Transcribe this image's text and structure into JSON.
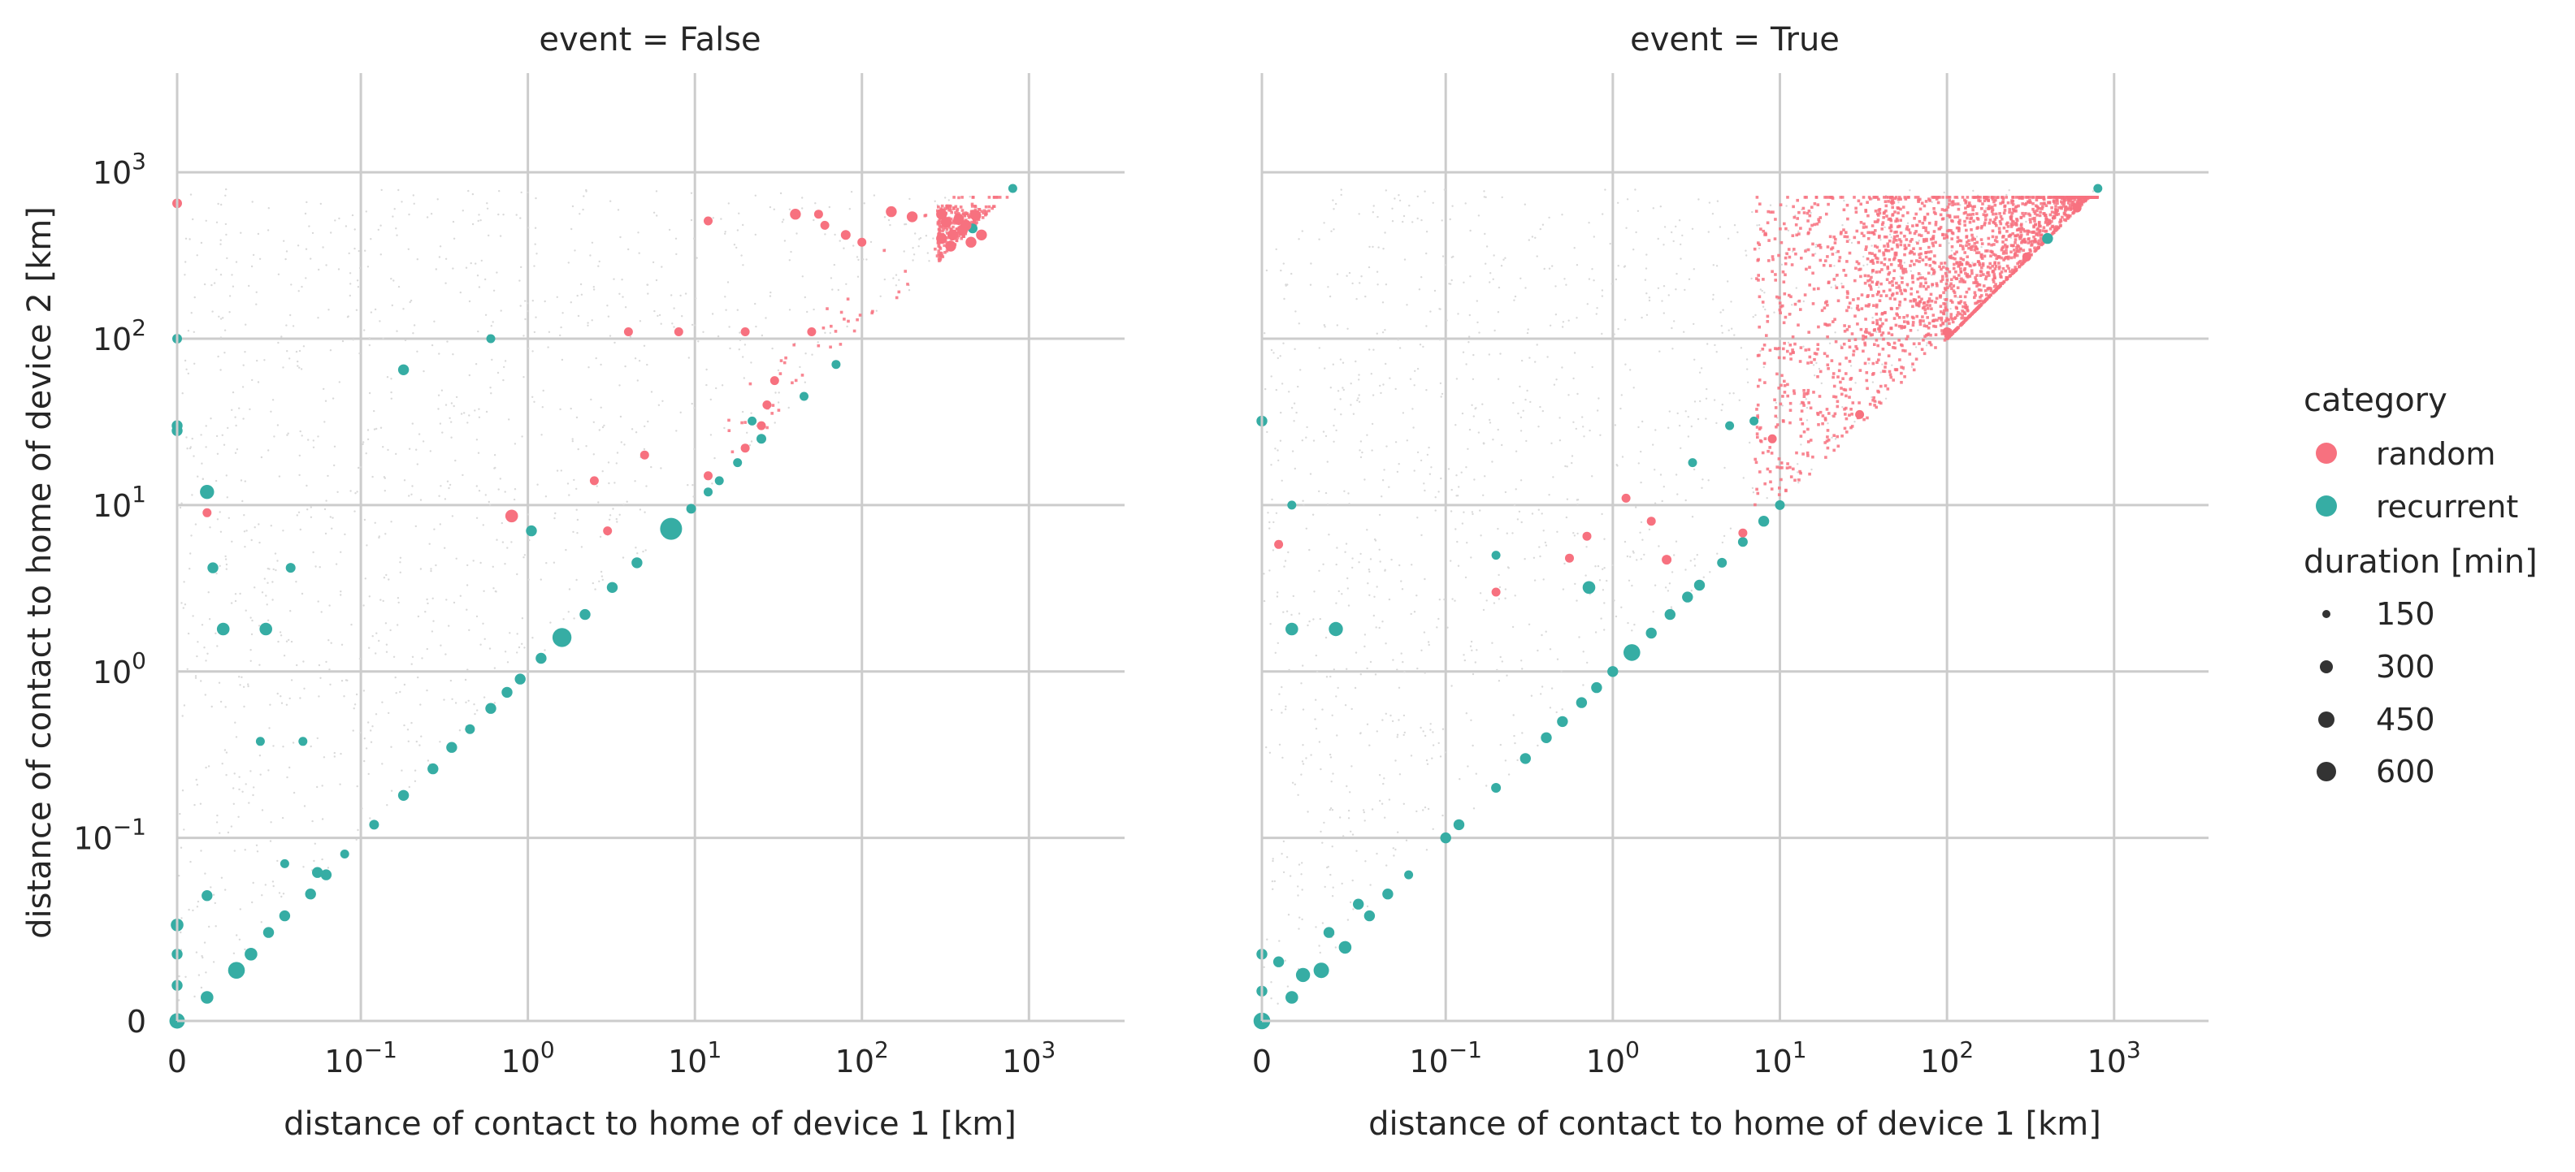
{
  "chart_data": [
    {
      "type": "scatter",
      "title": "event = False",
      "xlabel": "distance of contact to home of device 1 [km]",
      "ylabel": "distance of contact to home of device 2 [km]",
      "xscale": "symlog",
      "yscale": "symlog",
      "xlim": [
        0,
        2000
      ],
      "ylim": [
        0,
        2000
      ],
      "xticks": [
        {
          "value": 0,
          "base": "0",
          "exp": ""
        },
        {
          "value": 0.1,
          "base": "10",
          "exp": "−1"
        },
        {
          "value": 1,
          "base": "10",
          "exp": "0"
        },
        {
          "value": 10,
          "base": "10",
          "exp": "1"
        },
        {
          "value": 100,
          "base": "10",
          "exp": "2"
        },
        {
          "value": 1000,
          "base": "10",
          "exp": "3"
        }
      ],
      "yticks": [
        {
          "value": 0,
          "base": "0",
          "exp": ""
        },
        {
          "value": 0.1,
          "base": "10",
          "exp": "−1"
        },
        {
          "value": 1,
          "base": "10",
          "exp": "0"
        },
        {
          "value": 10,
          "base": "10",
          "exp": "1"
        },
        {
          "value": 100,
          "base": "10",
          "exp": "2"
        },
        {
          "value": 1000,
          "base": "10",
          "exp": "3"
        }
      ],
      "grid": true,
      "series": [
        {
          "name": "recurrent",
          "points": [
            [
              0.002,
              0.002,
              200
            ],
            [
              0.005,
              0.004,
              300
            ],
            [
              0.008,
              0.008,
              250
            ],
            [
              0.012,
              0.011,
              200
            ],
            [
              0.018,
              0.016,
              350
            ],
            [
              0.022,
              0.02,
              200
            ],
            [
              0.028,
              0.027,
              150
            ],
            [
              0.035,
              0.034,
              150
            ],
            [
              0.05,
              0.046,
              150
            ],
            [
              0.062,
              0.06,
              150
            ],
            [
              0.08,
              0.08,
              100
            ],
            [
              0.12,
              0.12,
              120
            ],
            [
              0.18,
              0.18,
              150
            ],
            [
              0.27,
              0.26,
              150
            ],
            [
              0.35,
              0.35,
              150
            ],
            [
              0.45,
              0.45,
              120
            ],
            [
              0.6,
              0.6,
              150
            ],
            [
              0.75,
              0.75,
              150
            ],
            [
              0.9,
              0.9,
              150
            ],
            [
              1.2,
              1.2,
              150
            ],
            [
              1.6,
              1.6,
              450
            ],
            [
              2.2,
              2.2,
              150
            ],
            [
              3.2,
              3.2,
              150
            ],
            [
              4.5,
              4.5,
              150
            ],
            [
              7.2,
              7.2,
              600
            ],
            [
              9.5,
              9.5,
              120
            ],
            [
              12,
              12,
              100
            ],
            [
              18,
              18,
              100
            ],
            [
              25,
              25,
              120
            ],
            [
              45,
              45,
              100
            ],
            [
              70,
              70,
              100
            ],
            [
              460,
              460,
              120
            ],
            [
              800,
              800,
              100
            ],
            [
              0.001,
              0.02,
              150
            ],
            [
              0.002,
              0.03,
              200
            ],
            [
              0.004,
              0.013,
              150
            ],
            [
              0.003,
              0.006,
              250
            ],
            [
              0.012,
              0.045,
              150
            ],
            [
              0.035,
              0.07,
              100
            ],
            [
              0.055,
              0.062,
              150
            ],
            [
              0.003,
              28,
              150
            ],
            [
              0.001,
              30,
              150
            ],
            [
              0.012,
              12,
              250
            ],
            [
              0.013,
              4.2,
              150
            ],
            [
              0.015,
              1.8,
              200
            ],
            [
              0.027,
              1.8,
              200
            ],
            [
              0.038,
              4.2,
              120
            ],
            [
              0.003,
              100,
              120
            ],
            [
              0.18,
              65,
              150
            ],
            [
              0.6,
              100,
              100
            ],
            [
              0.025,
              0.38,
              100
            ],
            [
              0.045,
              0.38,
              100
            ],
            [
              1.05,
              7,
              150
            ],
            [
              14,
              14,
              100
            ],
            [
              22,
              32,
              100
            ]
          ]
        },
        {
          "name": "random",
          "points": [
            [
              0.003,
              650,
              120
            ],
            [
              0.8,
              8.6,
              200
            ],
            [
              40,
              560,
              150
            ],
            [
              150,
              580,
              150
            ],
            [
              200,
              540,
              150
            ],
            [
              300,
              560,
              150
            ],
            [
              320,
              500,
              150
            ],
            [
              350,
              420,
              150
            ],
            [
              380,
              520,
              150
            ],
            [
              400,
              450,
              150
            ],
            [
              420,
              480,
              150
            ],
            [
              450,
              380,
              150
            ],
            [
              480,
              550,
              150
            ],
            [
              520,
              420,
              150
            ],
            [
              300,
              400,
              150
            ],
            [
              340,
              360,
              150
            ],
            [
              27,
              40,
              100
            ],
            [
              12,
              15,
              100
            ],
            [
              2.5,
              14,
              100
            ],
            [
              4,
              110,
              100
            ],
            [
              8,
              110,
              100
            ],
            [
              20,
              110,
              100
            ],
            [
              50,
              110,
              100
            ],
            [
              55,
              560,
              100
            ],
            [
              60,
              480,
              100
            ],
            [
              80,
              420,
              120
            ],
            [
              100,
              380,
              100
            ],
            [
              12,
              510,
              100
            ],
            [
              0.012,
              9,
              100
            ],
            [
              3,
              7,
              100
            ],
            [
              5,
              20,
              100
            ],
            [
              20,
              22,
              100
            ],
            [
              25,
              30,
              100
            ],
            [
              30,
              56,
              100
            ]
          ]
        }
      ]
    },
    {
      "type": "scatter",
      "title": "event = True",
      "xlabel": "distance of contact to home of device 1 [km]",
      "ylabel": "",
      "xscale": "symlog",
      "yscale": "symlog",
      "xlim": [
        0,
        2000
      ],
      "ylim": [
        0,
        2000
      ],
      "xticks": [
        {
          "value": 0,
          "base": "0",
          "exp": ""
        },
        {
          "value": 0.1,
          "base": "10",
          "exp": "−1"
        },
        {
          "value": 1,
          "base": "10",
          "exp": "0"
        },
        {
          "value": 10,
          "base": "10",
          "exp": "1"
        },
        {
          "value": 100,
          "base": "10",
          "exp": "2"
        },
        {
          "value": 1000,
          "base": "10",
          "exp": "3"
        }
      ],
      "grid": true,
      "series": [
        {
          "name": "recurrent",
          "points": [
            [
              0.002,
              0.002,
              300
            ],
            [
              0.005,
              0.004,
              350
            ],
            [
              0.008,
              0.007,
              250
            ],
            [
              0.012,
              0.011,
              200
            ],
            [
              0.018,
              0.016,
              300
            ],
            [
              0.025,
              0.022,
              200
            ],
            [
              0.035,
              0.034,
              150
            ],
            [
              0.045,
              0.046,
              150
            ],
            [
              0.06,
              0.06,
              100
            ],
            [
              0.1,
              0.1,
              150
            ],
            [
              0.12,
              0.12,
              150
            ],
            [
              0.2,
              0.2,
              120
            ],
            [
              0.3,
              0.3,
              150
            ],
            [
              0.4,
              0.4,
              150
            ],
            [
              0.5,
              0.5,
              150
            ],
            [
              0.65,
              0.65,
              150
            ],
            [
              0.8,
              0.8,
              150
            ],
            [
              1,
              1,
              150
            ],
            [
              1.3,
              1.3,
              350
            ],
            [
              1.7,
              1.7,
              150
            ],
            [
              2.2,
              2.2,
              150
            ],
            [
              2.8,
              2.8,
              150
            ],
            [
              3.3,
              3.3,
              150
            ],
            [
              4.5,
              4.5,
              120
            ],
            [
              6,
              6,
              120
            ],
            [
              8,
              8,
              150
            ],
            [
              10,
              10,
              120
            ],
            [
              400,
              400,
              150
            ],
            [
              800,
              800,
              100
            ],
            [
              0.001,
              0.02,
              150
            ],
            [
              0.003,
              0.012,
              150
            ],
            [
              0.004,
              0.007,
              200
            ],
            [
              0.01,
              0.018,
              150
            ],
            [
              0.014,
              0.015,
              250
            ],
            [
              0.02,
              0.027,
              150
            ],
            [
              0.03,
              0.04,
              150
            ],
            [
              0.001,
              32,
              150
            ],
            [
              0.012,
              1.8,
              200
            ],
            [
              0.022,
              1.8,
              250
            ],
            [
              0.72,
              3.2,
              200
            ],
            [
              0.012,
              10,
              100
            ],
            [
              0.2,
              5,
              100
            ],
            [
              3,
              18,
              100
            ],
            [
              5,
              30,
              100
            ],
            [
              7,
              32,
              100
            ]
          ]
        },
        {
          "name": "random",
          "points": [
            [
              0.01,
              5.8,
              100
            ],
            [
              0.2,
              3,
              100
            ],
            [
              0.55,
              4.8,
              100
            ],
            [
              0.7,
              6.5,
              100
            ],
            [
              1.2,
              11,
              100
            ],
            [
              1.7,
              8,
              100
            ],
            [
              2.1,
              4.7,
              120
            ],
            [
              6,
              6.8,
              100
            ],
            [
              9,
              25,
              100
            ],
            [
              30,
              35,
              100
            ],
            [
              100,
              110,
              100
            ],
            [
              300,
              310,
              100
            ],
            [
              600,
              610,
              100
            ]
          ]
        }
      ]
    }
  ],
  "legend": {
    "category_title": "category",
    "categories": [
      {
        "label": "random",
        "color": "#f7717f"
      },
      {
        "label": "recurrent",
        "color": "#36ada4"
      }
    ],
    "size_title": "duration [min]",
    "sizes": [
      {
        "label": "150",
        "value": 150
      },
      {
        "label": "300",
        "value": 300
      },
      {
        "label": "450",
        "value": 450
      },
      {
        "label": "600",
        "value": 600
      }
    ]
  },
  "colors": {
    "random": "#f7717f",
    "recurrent": "#36ada4",
    "grid": "#cccccc",
    "background_points": "#d9d9d9"
  }
}
